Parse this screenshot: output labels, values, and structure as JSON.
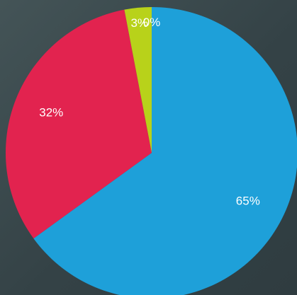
{
  "chart_data": {
    "type": "pie",
    "title": "",
    "slices": [
      {
        "label": "65%",
        "value": 65,
        "color": "#1ea0d9"
      },
      {
        "label": "32%",
        "value": 32,
        "color": "#e2234f"
      },
      {
        "label": "3%",
        "value": 3,
        "color": "#b8d21a"
      },
      {
        "label": "0%",
        "value": 0,
        "color": "#e6dc2a"
      }
    ],
    "start_angle_deg": 0,
    "direction": "clockwise"
  }
}
